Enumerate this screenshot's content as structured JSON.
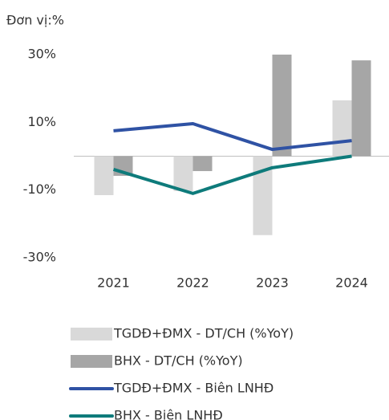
{
  "chart_data": {
    "type": "bar_line",
    "unit_label": "Đơn vị:%",
    "categories": [
      "2021",
      "2022",
      "2023",
      "2024"
    ],
    "ylim": [
      -30,
      30
    ],
    "yticks": [
      {
        "value": 30,
        "label": "30%"
      },
      {
        "value": 10,
        "label": "10%"
      },
      {
        "value": -10,
        "label": "-10%"
      },
      {
        "value": -30,
        "label": "-30%"
      }
    ],
    "series": [
      {
        "name": "TGDĐ+ĐMX - DT/CH (%YoY)",
        "kind": "bar",
        "color": "#d9d9d9",
        "values": [
          -11.5,
          -10.3,
          -23.3,
          16.5
        ]
      },
      {
        "name": "BHX - DT/CH (%YoY)",
        "kind": "bar",
        "color": "#a6a6a6",
        "values": [
          -5.8,
          -4.4,
          30,
          28.3
        ]
      },
      {
        "name": "TGDĐ+ĐMX - Biên LNHĐ",
        "kind": "line",
        "color": "#2f52a4",
        "values": [
          7.5,
          9.6,
          2.0,
          4.6
        ]
      },
      {
        "name": "BHX - Biên LNHĐ",
        "kind": "line",
        "color": "#0e7b7b",
        "values": [
          -3.9,
          -11.0,
          -3.4,
          0
        ]
      }
    ]
  }
}
